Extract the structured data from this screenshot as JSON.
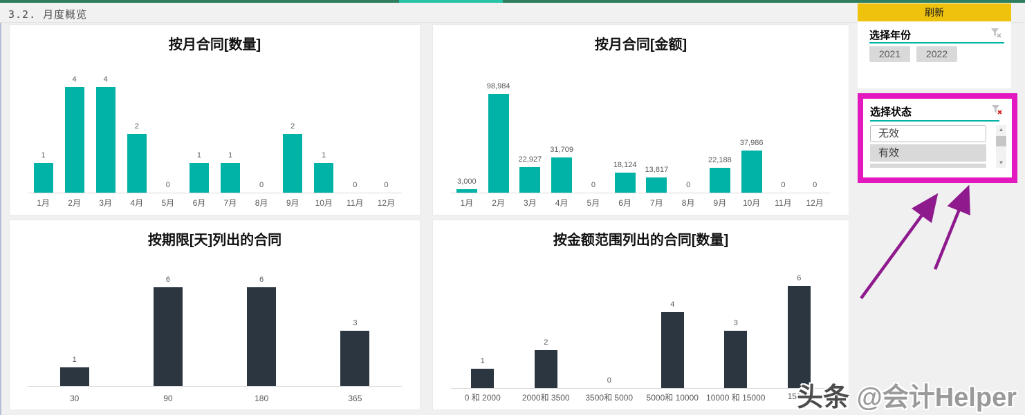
{
  "header": {
    "title": "3.2. 月度概览"
  },
  "sidebar": {
    "refresh_button": "刷新",
    "year_slicer": {
      "title": "选择年份",
      "options": [
        "2021",
        "2022"
      ]
    },
    "status_slicer": {
      "title": "选择状态",
      "options": [
        "无效",
        "有效"
      ]
    }
  },
  "watermark": {
    "brand": "头条",
    "handle": "@会计Helper"
  },
  "colors": {
    "teal": "#01b2a6",
    "dark": "#2c3640",
    "refresh_yellow": "#efc20d",
    "highlight_magenta": "#e318be",
    "arrow_purple": "#8e1a8e"
  },
  "chart_data": [
    {
      "type": "bar",
      "title": "按月合同[数量]",
      "categories": [
        "1月",
        "2月",
        "3月",
        "4月",
        "5月",
        "6月",
        "7月",
        "8月",
        "9月",
        "10月",
        "11月",
        "12月"
      ],
      "values": [
        1,
        4,
        4,
        2,
        0,
        1,
        1,
        0,
        2,
        1,
        0,
        0
      ],
      "value_labels": [
        "1",
        "4",
        "4",
        "2",
        "0",
        "1",
        "1",
        "0",
        "2",
        "1",
        "0",
        "0"
      ],
      "bar_color": "#01b2a6",
      "ylim": [
        0,
        4
      ],
      "grid": false,
      "legend": "none"
    },
    {
      "type": "bar",
      "title": "按月合同[金额]",
      "categories": [
        "1月",
        "2月",
        "3月",
        "4月",
        "5月",
        "6月",
        "7月",
        "8月",
        "9月",
        "10月",
        "11月",
        "12月"
      ],
      "values": [
        3000,
        98984,
        22927,
        31709,
        0,
        18124,
        13817,
        0,
        22188,
        37986,
        0,
        0
      ],
      "value_labels": [
        "3,000",
        "98,984",
        "22,927",
        "31,709",
        "0",
        "18,124",
        "13,817",
        "0",
        "22,188",
        "37,986",
        "0",
        "0"
      ],
      "bar_color": "#01b2a6",
      "ylim": [
        0,
        98984
      ],
      "grid": false,
      "legend": "none"
    },
    {
      "type": "bar",
      "title": "按期限[天]列出的合同",
      "categories": [
        "30",
        "90",
        "180",
        "365"
      ],
      "values": [
        1,
        6,
        6,
        3
      ],
      "value_labels": [
        "1",
        "6",
        "6",
        "3"
      ],
      "bar_color": "#2c3640",
      "ylim": [
        0,
        6
      ],
      "grid": false,
      "legend": "none"
    },
    {
      "type": "bar",
      "title": "按金额范围列出的合同[数量]",
      "categories": [
        "0 和 2000",
        "2000和 3500",
        "3500和 5000",
        "5000和 10000",
        "10000 和 15000",
        "15000"
      ],
      "values": [
        1,
        2,
        0,
        4,
        3,
        6
      ],
      "value_labels": [
        "1",
        "2",
        "0",
        "4",
        "3",
        "6"
      ],
      "bar_color": "#2c3640",
      "ylim": [
        0,
        6
      ],
      "grid": false,
      "legend": "none"
    }
  ]
}
